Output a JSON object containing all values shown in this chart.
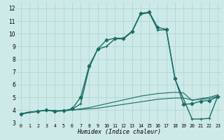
{
  "title": "",
  "xlabel": "Humidex (Indice chaleur)",
  "bg_color": "#ceeae8",
  "grid_color": "#a8d4d1",
  "line_color": "#1a6e65",
  "xlim": [
    -0.5,
    23.5
  ],
  "ylim": [
    3,
    12.5
  ],
  "xticks": [
    0,
    1,
    2,
    3,
    4,
    5,
    6,
    7,
    8,
    9,
    10,
    11,
    12,
    13,
    14,
    15,
    16,
    17,
    18,
    19,
    20,
    21,
    22,
    23
  ],
  "yticks": [
    3,
    4,
    5,
    6,
    7,
    8,
    9,
    10,
    11,
    12
  ],
  "series": [
    {
      "x": [
        0,
        1,
        2,
        3,
        4,
        5,
        6,
        7,
        8,
        9,
        10,
        11,
        12,
        13,
        14,
        15,
        16,
        17,
        18,
        19,
        20,
        21,
        22,
        23
      ],
      "y": [
        3.7,
        3.85,
        3.9,
        4.0,
        3.95,
        3.95,
        4.0,
        4.05,
        4.1,
        4.15,
        4.25,
        4.35,
        4.45,
        4.55,
        4.65,
        4.75,
        4.85,
        4.9,
        4.95,
        4.95,
        4.8,
        4.85,
        4.9,
        5.1
      ],
      "marker": null,
      "lw": 0.8
    },
    {
      "x": [
        0,
        1,
        2,
        3,
        4,
        5,
        6,
        7,
        8,
        9,
        10,
        11,
        12,
        13,
        14,
        15,
        16,
        17,
        18,
        19,
        20,
        21,
        22,
        23
      ],
      "y": [
        3.7,
        3.85,
        3.9,
        4.0,
        3.95,
        3.95,
        4.0,
        4.1,
        4.2,
        4.35,
        4.5,
        4.65,
        4.8,
        4.95,
        5.1,
        5.2,
        5.3,
        5.35,
        5.4,
        5.35,
        4.75,
        4.9,
        5.0,
        5.2
      ],
      "marker": null,
      "lw": 0.8
    },
    {
      "x": [
        0,
        2,
        3,
        4,
        5,
        6,
        7,
        8,
        9,
        10,
        11,
        12,
        13,
        14,
        15,
        16,
        17,
        18,
        19,
        20,
        21,
        22,
        23
      ],
      "y": [
        3.7,
        3.9,
        4.0,
        3.9,
        3.95,
        4.1,
        5.0,
        7.5,
        8.8,
        9.5,
        9.65,
        9.65,
        10.2,
        11.6,
        11.7,
        10.5,
        10.35,
        6.5,
        4.45,
        4.5,
        4.7,
        4.75,
        5.05
      ],
      "marker": "D",
      "markersize": 2.5,
      "lw": 1.0
    },
    {
      "x": [
        0,
        2,
        3,
        4,
        5,
        6,
        7,
        8,
        9,
        10,
        11,
        12,
        13,
        14,
        15,
        16,
        17,
        18,
        20,
        21,
        22,
        23
      ],
      "y": [
        3.7,
        3.9,
        4.0,
        3.9,
        3.95,
        4.05,
        4.5,
        7.35,
        8.8,
        9.0,
        9.6,
        9.6,
        10.15,
        11.55,
        11.65,
        10.3,
        10.3,
        6.45,
        3.3,
        3.3,
        3.35,
        5.1
      ],
      "marker": "+",
      "markersize": 3.5,
      "lw": 1.0
    }
  ]
}
